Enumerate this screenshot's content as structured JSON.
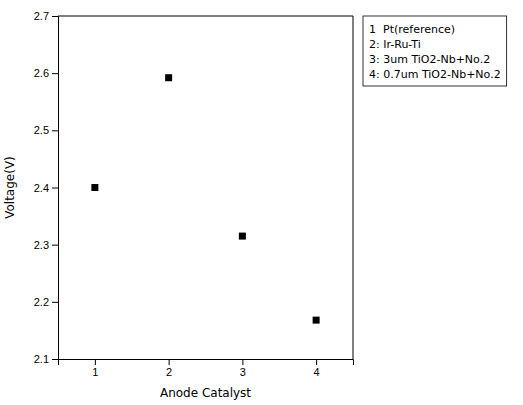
{
  "chart_data": {
    "type": "scatter",
    "x": [
      1,
      2,
      3,
      4
    ],
    "values": [
      2.4,
      2.592,
      2.315,
      2.168
    ],
    "xlabel": "Anode Catalyst",
    "ylabel": "Voltage(V)",
    "xlim": [
      0.5,
      4.5
    ],
    "ylim": [
      2.1,
      2.7
    ],
    "xticks": [
      1,
      2,
      3,
      4
    ],
    "yticks": [
      2.1,
      2.2,
      2.3,
      2.4,
      2.5,
      2.6,
      2.7
    ],
    "marker": "square",
    "color": "black",
    "grid": false,
    "annotations": [
      "1  Pt(reference)",
      "2: Ir-Ru-Ti",
      "3: 3um TiO2-Nb+No.2",
      "4: 0.7um TiO2-Nb+No.2"
    ]
  }
}
